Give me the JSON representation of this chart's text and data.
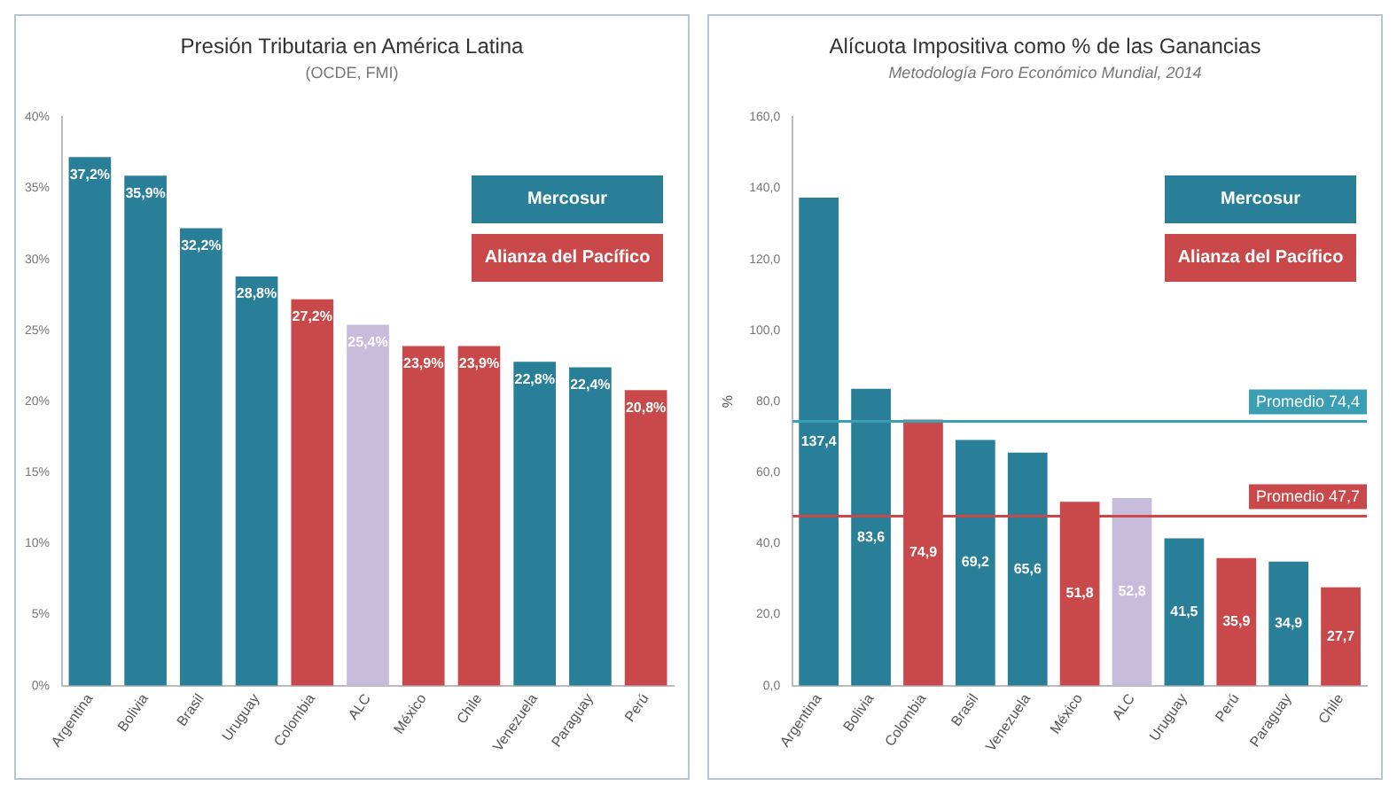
{
  "chart_data": [
    {
      "type": "bar",
      "title": "Presión Tributaria en América Latina",
      "subtitle": "(OCDE, FMI)",
      "categories": [
        "Argentina",
        "Bolivia",
        "Brasil",
        "Uruguay",
        "Colombia",
        "ALC",
        "México",
        "Chile",
        "Venezuela",
        "Paraguay",
        "Perú"
      ],
      "stacked": true,
      "legend": "top right",
      "grid": false,
      "series": [
        {
          "name": "Mercosur",
          "color": "#2a7f98",
          "values": [
            37.2,
            35.9,
            32.2,
            28.8,
            null,
            null,
            null,
            null,
            22.8,
            22.4,
            null
          ],
          "value_labels": [
            "37,2%",
            "35,9%",
            "32,2%",
            "28,8%",
            null,
            null,
            null,
            null,
            "22,8%",
            "22,4%",
            null
          ]
        },
        {
          "name": "Alianza  del Pacífico",
          "color": "#c9494a",
          "values": [
            null,
            null,
            null,
            null,
            27.2,
            null,
            23.9,
            23.9,
            null,
            null,
            20.8
          ],
          "value_labels": [
            null,
            null,
            null,
            null,
            "27,2%",
            null,
            "23,9%",
            "23,9%",
            null,
            null,
            "20,8%"
          ]
        },
        {
          "color": "#c8bcdc",
          "values": [
            null,
            null,
            null,
            null,
            null,
            25.4,
            null,
            null,
            null,
            null,
            null
          ],
          "value_labels": [
            null,
            null,
            null,
            null,
            null,
            "25,4%",
            null,
            null,
            null,
            null,
            null
          ]
        }
      ],
      "ylim": [
        0,
        40
      ],
      "yticks": [
        {
          "value": 0,
          "label": "0%"
        },
        {
          "value": 5,
          "label": "5%"
        },
        {
          "value": 10,
          "label": "10%"
        },
        {
          "value": 15,
          "label": "15%"
        },
        {
          "value": 20,
          "label": "20%"
        },
        {
          "value": 25,
          "label": "25%"
        },
        {
          "value": 30,
          "label": "30%"
        },
        {
          "value": 35,
          "label": "35%"
        },
        {
          "value": 40,
          "label": "40%"
        }
      ]
    },
    {
      "type": "bar",
      "title": "Alícuota Impositiva como % de las Ganancias",
      "subtitle": "Metodología Foro Económico Mundial, 2014",
      "ylabel": "%",
      "categories": [
        "Argentina",
        "Bolivia",
        "Colombia",
        "Brasil",
        "Venezuela",
        "México",
        "ALC",
        "Uruguay",
        "Perú",
        "Paraguay",
        "Chile"
      ],
      "stacked": true,
      "legend": "top right",
      "grid": false,
      "series": [
        {
          "name": "Mercosur",
          "color": "#2a7f98",
          "values": [
            137.4,
            83.6,
            null,
            69.2,
            65.6,
            null,
            null,
            41.5,
            null,
            34.9,
            null
          ],
          "value_labels": [
            "137,4",
            "83,6",
            null,
            "69,2",
            "65,6",
            null,
            null,
            "41,5",
            null,
            "34,9",
            null
          ]
        },
        {
          "name": "Alianza  del Pacífico",
          "color": "#c9494a",
          "values": [
            null,
            null,
            74.9,
            null,
            null,
            51.8,
            null,
            null,
            35.9,
            null,
            27.7
          ],
          "value_labels": [
            null,
            null,
            "74,9",
            null,
            null,
            "51,8",
            null,
            null,
            "35,9",
            null,
            "27,7"
          ]
        },
        {
          "color": "#c8bcdc",
          "values": [
            null,
            null,
            null,
            null,
            null,
            null,
            52.8,
            null,
            null,
            null,
            null
          ],
          "value_labels": [
            null,
            null,
            null,
            null,
            null,
            null,
            "52,8",
            null,
            null,
            null,
            null
          ]
        }
      ],
      "ref_lines": [
        {
          "axis": "y",
          "value": 74.4,
          "label": "Promedio 74,4",
          "color": "#3a9fb5"
        },
        {
          "axis": "y",
          "value": 47.7,
          "label": "Promedio 47,7",
          "color": "#c9494a"
        }
      ],
      "ylim": [
        0,
        160
      ],
      "yticks": [
        {
          "value": 0,
          "label": "0,0"
        },
        {
          "value": 20,
          "label": "20,0"
        },
        {
          "value": 40,
          "label": "40,0"
        },
        {
          "value": 60,
          "label": "60,0"
        },
        {
          "value": 80,
          "label": "80,0"
        },
        {
          "value": 100,
          "label": "100,0"
        },
        {
          "value": 120,
          "label": "120,0"
        },
        {
          "value": 140,
          "label": "140,0"
        },
        {
          "value": 160,
          "label": "160,0"
        }
      ]
    }
  ]
}
